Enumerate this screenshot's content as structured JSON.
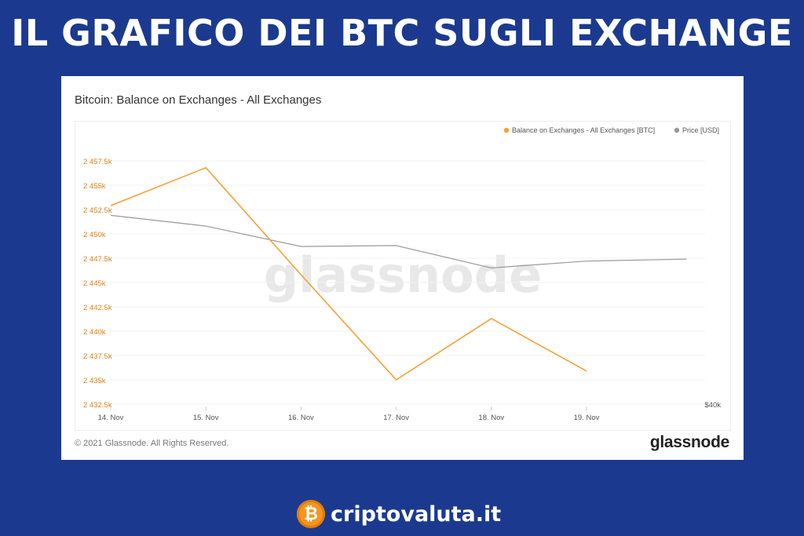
{
  "headline": "IL GRAFICO DEI BTC SUGLI EXCHANGE",
  "card": {
    "copyright": "© 2021 Glassnode. All Rights Reserved.",
    "logo_text": "glassnode",
    "watermark": "glassnode"
  },
  "brand": {
    "name": "criptovaluta.it",
    "icon": "bitcoin-coin-icon"
  },
  "chart_data": {
    "type": "line",
    "title": "Bitcoin: Balance on Exchanges - All Exchanges",
    "legend_position": "top-right",
    "x_ticks": [
      "14. Nov",
      "15. Nov",
      "16. Nov",
      "17. Nov",
      "18. Nov",
      "19. Nov"
    ],
    "y_left": {
      "ticks": [
        "2 432.5k",
        "2 435k",
        "2 437.5k",
        "2 440k",
        "2 442.5k",
        "2 445k",
        "2 447.5k",
        "2 450k",
        "2 452.5k",
        "2 455k",
        "2 457.5k"
      ],
      "min": 2432.5,
      "max": 2457.5,
      "unit": "k"
    },
    "y_right": {
      "ticks": [
        "$40k"
      ]
    },
    "grid": true,
    "series": [
      {
        "name": "Balance on Exchanges - All Exchanges [BTC]",
        "color": "#f7a035",
        "axis": "left",
        "x": [
          14,
          15,
          16,
          17,
          18,
          19
        ],
        "values": [
          2452.9,
          2456.8,
          2445.8,
          2435.0,
          2441.3,
          2435.9
        ]
      },
      {
        "name": "Price [USD]",
        "color": "#999999",
        "axis": "left-scaled",
        "x": [
          14,
          15,
          16,
          17,
          18,
          19,
          20.05
        ],
        "values": [
          2451.9,
          2450.8,
          2448.7,
          2448.8,
          2446.5,
          2447.2,
          2447.4
        ]
      }
    ]
  }
}
